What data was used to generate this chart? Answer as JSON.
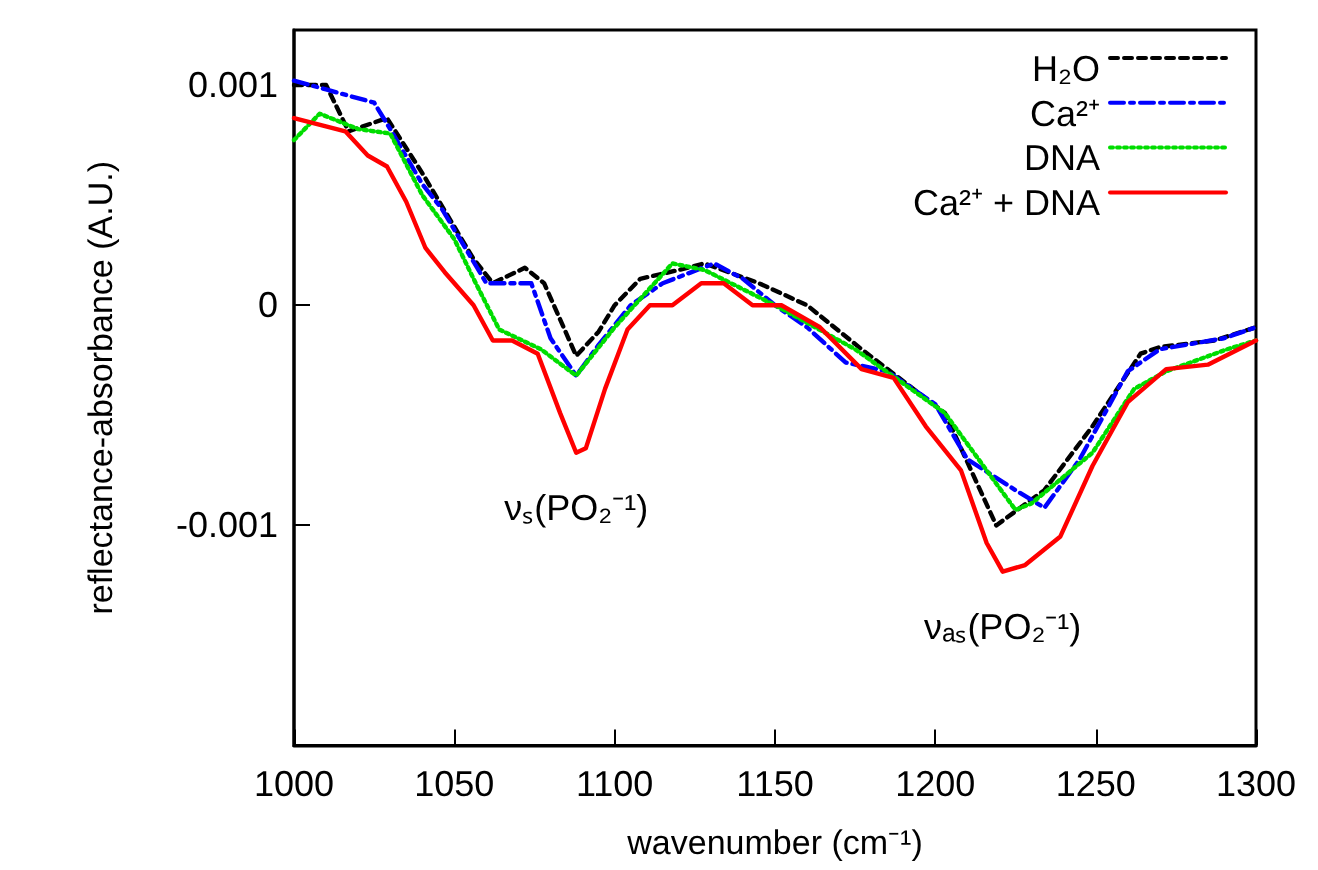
{
  "chart_data": {
    "type": "line",
    "xlabel": "wavenumber (cm⁻¹)",
    "ylabel": "reflectance-absorbance (A.U.)",
    "xlim": [
      1000,
      1300
    ],
    "xticks": [
      1000,
      1050,
      1100,
      1150,
      1200,
      1250,
      1300
    ],
    "ylim": [
      -0.002,
      0.00125
    ],
    "yticks": [
      -0.001,
      0,
      0.001
    ],
    "grid": false,
    "legend": "top right",
    "marker": "none",
    "annotations": [
      {
        "text": "νₛ(PO₂⁻¹)",
        "x": 1088,
        "y": -0.00067
      },
      {
        "text": "νₐₛ(PO₂⁻¹)",
        "x": 1221,
        "y": -0.00121
      }
    ],
    "series": [
      {
        "name": "H₂O",
        "color": "#000000",
        "line_style": "dashed",
        "x": [
          1000,
          1010,
          1017,
          1029,
          1040,
          1056,
          1062,
          1072,
          1078,
          1088,
          1095,
          1100,
          1108,
          1120,
          1128,
          1145,
          1160,
          1177,
          1203,
          1219,
          1234,
          1249,
          1264,
          1270,
          1287,
          1300
        ],
        "values": [
          0.001,
          0.001,
          0.00079,
          0.00085,
          0.0006,
          0.00021,
          0.0001,
          0.00017,
          0.0001,
          -0.00023,
          -0.00012,
          0.0,
          0.00012,
          0.00016,
          0.00019,
          0.0001,
          0.0,
          -0.0002,
          -0.00049,
          -0.001,
          -0.00084,
          -0.00055,
          -0.00022,
          -0.00019,
          -0.00016,
          -0.0001
        ]
      },
      {
        "name": "Ca²⁺",
        "color": "#0000ff",
        "line_style": "dashdot",
        "x": [
          1000,
          1010,
          1025,
          1030,
          1040,
          1046,
          1060,
          1074,
          1080,
          1088,
          1095,
          1105,
          1115,
          1131,
          1140,
          1150,
          1160,
          1172,
          1185,
          1200,
          1210,
          1225,
          1234,
          1245,
          1260,
          1270,
          1290,
          1300
        ],
        "values": [
          0.00102,
          0.00098,
          0.00092,
          0.0008,
          0.00055,
          0.00044,
          0.0001,
          0.0001,
          -0.00015,
          -0.00032,
          -0.00018,
          0.0,
          0.0001,
          0.00019,
          0.00012,
          0.0,
          -0.0001,
          -0.00026,
          -0.0003,
          -0.00045,
          -0.0007,
          -0.00084,
          -0.00092,
          -0.0007,
          -0.0003,
          -0.0002,
          -0.00015,
          -0.0001
        ]
      },
      {
        "name": "DNA",
        "color": "#00dd00",
        "line_style": "dotted",
        "x": [
          1000,
          1008,
          1020,
          1030,
          1040,
          1050,
          1056,
          1064,
          1077,
          1088,
          1100,
          1118,
          1128,
          1150,
          1175,
          1203,
          1225,
          1230,
          1249,
          1262,
          1272,
          1291,
          1300
        ],
        "values": [
          0.00075,
          0.00087,
          0.0008,
          0.00078,
          0.0005,
          0.0003,
          0.00012,
          -0.00011,
          -0.0002,
          -0.00032,
          -0.0001,
          0.00019,
          0.00016,
          0.0,
          -0.0002,
          -0.00049,
          -0.00093,
          -0.0009,
          -0.00067,
          -0.00038,
          -0.0003,
          -0.0002,
          -0.00016
        ]
      },
      {
        "name": "Ca²⁺ + DNA",
        "color": "#ff0000",
        "line_style": "solid",
        "x": [
          1000,
          1016,
          1023,
          1029,
          1035,
          1041,
          1047,
          1056,
          1062,
          1068,
          1076,
          1083,
          1088,
          1091,
          1097,
          1104,
          1111,
          1118,
          1127,
          1134,
          1143,
          1152,
          1164,
          1177,
          1187,
          1197,
          1208,
          1216,
          1221,
          1228,
          1239,
          1249,
          1260,
          1272,
          1285,
          1300
        ],
        "values": [
          0.00085,
          0.00079,
          0.00068,
          0.00063,
          0.00047,
          0.00026,
          0.00015,
          0.0,
          -0.00016,
          -0.00016,
          -0.00022,
          -0.00049,
          -0.00067,
          -0.00065,
          -0.00038,
          -0.00011,
          0.0,
          0.0,
          0.0001,
          0.0001,
          0.0,
          0.0,
          -0.0001,
          -0.00029,
          -0.00033,
          -0.00055,
          -0.00075,
          -0.00108,
          -0.00121,
          -0.00118,
          -0.00105,
          -0.00073,
          -0.00044,
          -0.00029,
          -0.00027,
          -0.00016
        ]
      }
    ]
  }
}
